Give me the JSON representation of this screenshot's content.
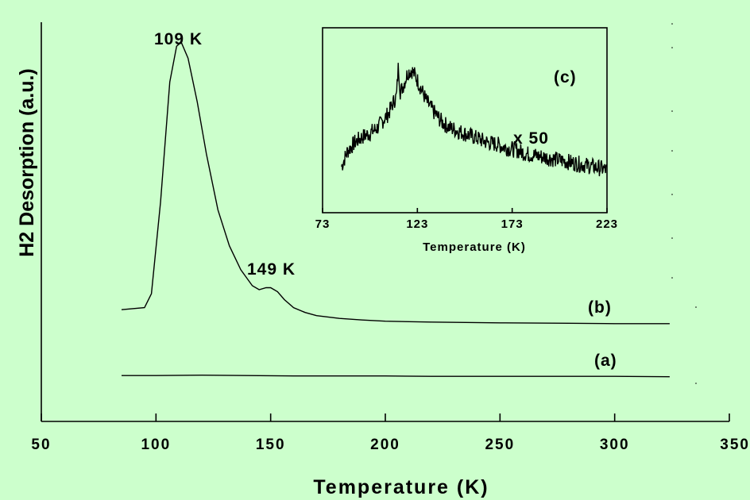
{
  "colors": {
    "background": "#ccffcc",
    "ink": "#000000"
  },
  "chart_data": [
    {
      "type": "line",
      "title": "",
      "xlabel": "Temperature (K)",
      "ylabel": "H2 Desorption (a.u.)",
      "xlim": [
        50,
        350
      ],
      "ylim": [
        0,
        100
      ],
      "x_ticks": [
        "50",
        "100",
        "150",
        "200",
        "250",
        "300",
        "350"
      ],
      "y_ticks": [],
      "grid": false,
      "legend": "none",
      "series": [
        {
          "label": "(a)",
          "x": [
            85,
            100,
            120,
            140,
            160,
            180,
            200,
            220,
            240,
            260,
            280,
            300,
            324
          ],
          "y": [
            11.5,
            11.5,
            11.6,
            11.5,
            11.4,
            11.4,
            11.4,
            11.3,
            11.3,
            11.3,
            11.3,
            11.3,
            11.2
          ]
        },
        {
          "label": "(b)",
          "x": [
            85,
            95,
            98,
            102,
            106,
            109,
            111,
            114,
            118,
            122,
            127,
            132,
            137,
            142,
            145,
            148,
            150,
            153,
            156,
            160,
            165,
            170,
            180,
            190,
            200,
            220,
            250,
            280,
            300,
            324
          ],
          "y": [
            28.0,
            28.5,
            32.0,
            55.0,
            85.0,
            94.0,
            95.0,
            91.0,
            80.0,
            67.0,
            53.0,
            44.0,
            38.0,
            34.0,
            33.0,
            33.5,
            33.5,
            32.5,
            30.5,
            28.5,
            27.3,
            26.5,
            25.8,
            25.4,
            25.1,
            24.9,
            24.7,
            24.6,
            24.5,
            24.5
          ]
        }
      ],
      "annotations": [
        "109 K",
        "149 K"
      ]
    },
    {
      "type": "line",
      "title": "",
      "panel_label": "(c)",
      "multiplier": "x 50",
      "xlabel": "Temperature (K)",
      "ylabel": "",
      "xlim": [
        73,
        223
      ],
      "ylim": [
        0,
        100
      ],
      "x_ticks": [
        "73",
        "123",
        "173",
        "223"
      ],
      "grid": false,
      "legend": "none",
      "series": [
        {
          "x": [
            83,
            86,
            90,
            94,
            98,
            102,
            105,
            108,
            110,
            111,
            112,
            113,
            114,
            116,
            118,
            120,
            122,
            125,
            128,
            132,
            136,
            140,
            145,
            150,
            155,
            160,
            165,
            170,
            175,
            180,
            185,
            190,
            195,
            200,
            205,
            210,
            215,
            220,
            223
          ],
          "y": [
            25,
            33,
            38,
            41,
            43,
            46,
            50,
            54,
            59,
            61,
            63,
            80,
            65,
            70,
            76,
            77,
            74,
            67,
            60,
            54,
            49,
            46,
            44,
            42,
            40,
            38,
            37,
            35,
            34,
            32,
            31,
            30,
            29,
            28,
            27,
            26,
            25,
            24,
            23
          ]
        }
      ]
    }
  ]
}
